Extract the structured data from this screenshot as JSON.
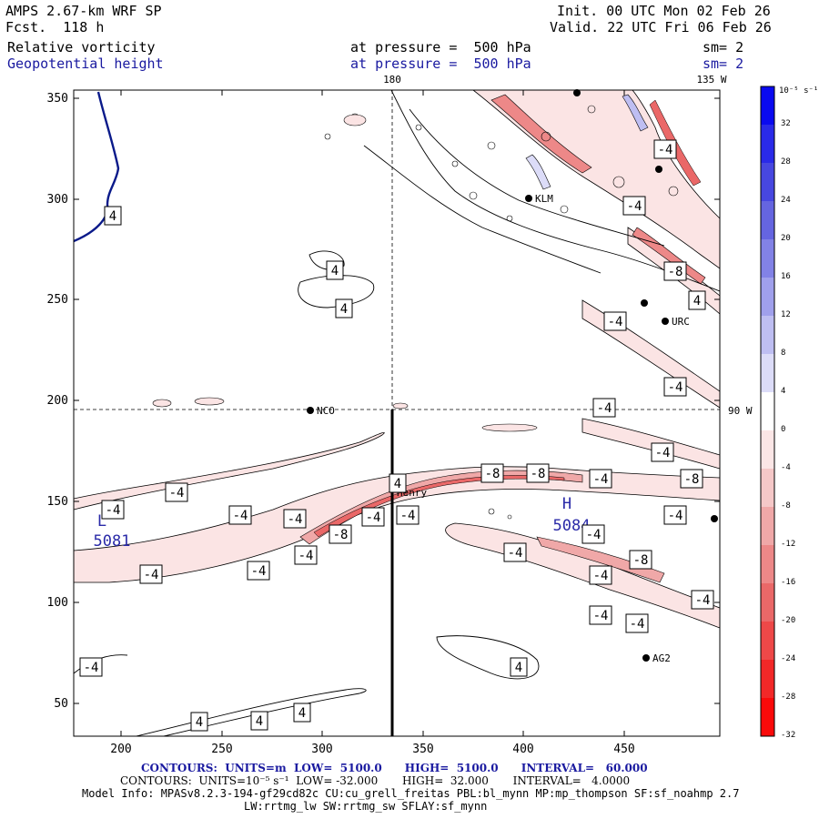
{
  "header": {
    "model": "AMPS 2.67-km WRF SP",
    "fcst": "Fcst.  118 h",
    "init": "Init. 00 UTC Mon 02 Feb 26",
    "valid": "Valid. 22 UTC Fri 06 Feb 26",
    "field1_name": "Relative vorticity",
    "field1_level": "at pressure =  500 hPa",
    "field1_sm": "sm= 2",
    "field2_name": "Geopotential height",
    "field2_level": "at pressure =  500 hPa",
    "field2_sm": "sm= 2"
  },
  "map": {
    "lon_labels": {
      "top_180": "180",
      "top_135w": "135 W",
      "right_90w": "90 W"
    },
    "x_ticks": [
      "200",
      "250",
      "300",
      "350",
      "400",
      "450"
    ],
    "y_ticks": [
      "350",
      "300",
      "250",
      "200",
      "150",
      "100",
      "50"
    ],
    "stations": [
      {
        "name": "KLM"
      },
      {
        "name": "URC"
      },
      {
        "name": "NCO"
      },
      {
        "name": "Henry"
      },
      {
        "name": "AG2"
      }
    ],
    "centers": [
      {
        "type": "L",
        "value": "5081"
      },
      {
        "type": "H",
        "value": "5084"
      }
    ],
    "contour_labels_neg": [
      "-4",
      "-4",
      "-4",
      "-4",
      "-4",
      "-4",
      "-8",
      "-4",
      "-4",
      "-4",
      "-8",
      "-8",
      "-4",
      "-4",
      "-8",
      "-4",
      "-4",
      "-4",
      "-8",
      "-4",
      "-4",
      "-4",
      "-4",
      "-4",
      "-4",
      "-4",
      "-4",
      "-4",
      "-8",
      "-4"
    ],
    "contour_labels_pos": [
      "4",
      "4",
      "4",
      "4",
      "4",
      "4",
      "4",
      "4",
      "4"
    ]
  },
  "colorbar": {
    "unit": "10⁻⁵ s⁻¹",
    "labels": [
      "32",
      "28",
      "24",
      "20",
      "16",
      "12",
      "8",
      "4",
      "0",
      "-4",
      "-8",
      "-12",
      "-16",
      "-20",
      "-24",
      "-28",
      "-32"
    ],
    "colors": [
      "#0a0af0",
      "#2a2ae8",
      "#4747e0",
      "#6565e0",
      "#8282e6",
      "#a0a0ec",
      "#bebef2",
      "#dcdcf8",
      "#ffffff",
      "#fbe6e6",
      "#f5c8c8",
      "#f0a8a8",
      "#ed8888",
      "#ea6868",
      "#ee4848",
      "#f22828",
      "#fa0a0a"
    ]
  },
  "footer": {
    "contours1": "CONTOURS:  UNITS=m  LOW=  5100.0      HIGH=  5100.0      INTERVAL=   60.000",
    "contours2": "CONTOURS:  UNITS=10⁻⁵ s⁻¹  LOW= -32.000       HIGH=  32.000       INTERVAL=   4.0000",
    "model_info": "Model Info: MPASv8.2.3-194-gf29cd82c CU:cu_grell_freitas PBL:bl_mynn MP:mp_thompson SF:sf_noahmp 2.7",
    "physics": "LW:rrtmg_lw SW:rrtmg_sw SFLAY:sf_mynn"
  }
}
